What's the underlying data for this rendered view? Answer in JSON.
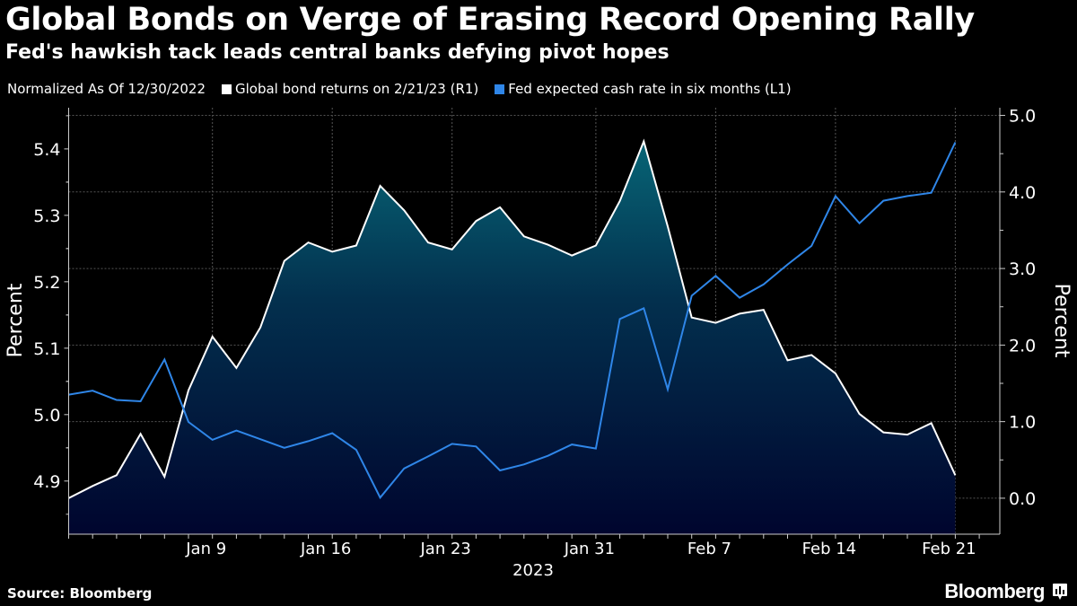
{
  "header": {
    "title": "Global Bonds on Verge of Erasing Record Opening Rally",
    "subtitle": "Fed's hawkish tack leads central banks defying pivot hopes"
  },
  "footer": {
    "source": "Source: Bloomberg",
    "logo": "Bloomberg"
  },
  "chart_data": {
    "type": "line",
    "note_label": "Normalized As Of 12/30/2022",
    "x": [
      "2022-12-30",
      "2023-01-02",
      "2023-01-03",
      "2023-01-04",
      "2023-01-05",
      "2023-01-06",
      "2023-01-09",
      "2023-01-10",
      "2023-01-11",
      "2023-01-12",
      "2023-01-13",
      "2023-01-16",
      "2023-01-17",
      "2023-01-18",
      "2023-01-19",
      "2023-01-20",
      "2023-01-23",
      "2023-01-24",
      "2023-01-25",
      "2023-01-26",
      "2023-01-27",
      "2023-01-30",
      "2023-01-31",
      "2023-02-01",
      "2023-02-02",
      "2023-02-03",
      "2023-02-06",
      "2023-02-07",
      "2023-02-08",
      "2023-02-09",
      "2023-02-10",
      "2023-02-13",
      "2023-02-14",
      "2023-02-15",
      "2023-02-16",
      "2023-02-17",
      "2023-02-20",
      "2023-02-21"
    ],
    "series": [
      {
        "name": "Global bond returns on 2/21/23 (R1)",
        "axis": "right",
        "color": "#ffffff",
        "style": "area",
        "values": [
          0.0,
          0.16,
          0.3,
          0.84,
          0.28,
          1.41,
          2.11,
          1.7,
          2.23,
          3.1,
          3.34,
          3.22,
          3.3,
          4.08,
          3.76,
          3.34,
          3.25,
          3.62,
          3.8,
          3.42,
          3.31,
          3.17,
          3.3,
          3.88,
          4.66,
          3.55,
          2.36,
          2.29,
          2.41,
          2.46,
          1.8,
          1.87,
          1.63,
          1.1,
          0.86,
          0.83,
          0.98,
          0.3
        ]
      },
      {
        "name": "Fed expected cash rate in six months (L1)",
        "axis": "left",
        "color": "#2f86e8",
        "style": "line",
        "values": [
          5.03,
          5.036,
          5.022,
          5.02,
          5.083,
          4.989,
          4.962,
          4.976,
          4.963,
          4.95,
          4.96,
          4.972,
          4.947,
          4.875,
          4.919,
          4.937,
          4.956,
          4.952,
          4.916,
          4.925,
          4.938,
          4.955,
          4.949,
          5.144,
          5.16,
          5.038,
          5.179,
          5.209,
          5.176,
          5.196,
          5.226,
          5.254,
          5.329,
          5.288,
          5.322,
          5.329,
          5.334,
          5.41
        ]
      }
    ],
    "x_ticks": [
      {
        "date": "2023-01-09",
        "label": "Jan 9"
      },
      {
        "date": "2023-01-16",
        "label": "Jan 16"
      },
      {
        "date": "2023-01-23",
        "label": "Jan 23"
      },
      {
        "date": "2023-01-31",
        "label": "Jan 31"
      },
      {
        "date": "2023-02-07",
        "label": "Feb 7"
      },
      {
        "date": "2023-02-14",
        "label": "Feb 14"
      },
      {
        "date": "2023-02-21",
        "label": "Feb 21"
      }
    ],
    "x_year_label": "2023",
    "left_axis": {
      "label": "Percent",
      "range": [
        4.82,
        5.462
      ],
      "ticks": [
        "4.9",
        "5.0",
        "5.1",
        "5.2",
        "5.3",
        "5.4"
      ]
    },
    "right_axis": {
      "label": "Percent",
      "range": [
        -0.47,
        5.1
      ],
      "ticks": [
        "0.0",
        "1.0",
        "2.0",
        "3.0",
        "4.0",
        "5.0"
      ]
    },
    "grid": true,
    "legend_placement": "top-left",
    "colors": {
      "background": "#000000",
      "area_top": "#08707e",
      "area_bottom": "#00052e",
      "fed_line": "#2f86e8",
      "bond_line": "#ffffff"
    }
  }
}
